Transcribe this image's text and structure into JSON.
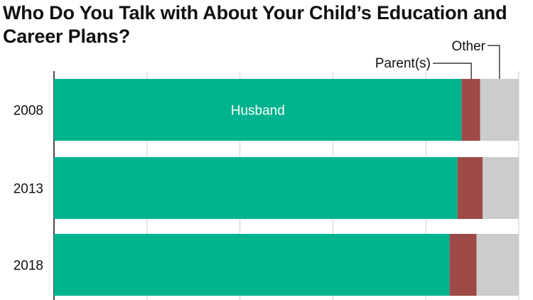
{
  "chart_data": {
    "type": "bar",
    "orientation": "horizontal",
    "stacked": true,
    "normalized": true,
    "title": "Who Do You Talk with About Your Child’s Education and Career Plans?",
    "xlabel": "",
    "ylabel": "",
    "xlim": [
      0,
      100
    ],
    "grid": true,
    "categories": [
      "2008",
      "2013",
      "2018"
    ],
    "series": [
      {
        "name": "Husband",
        "color": "#00b38f",
        "values": [
          87.7,
          86.8,
          85.1
        ]
      },
      {
        "name": "Parent(s)",
        "color": "#9e4a48",
        "values": [
          4.0,
          5.4,
          5.8
        ]
      },
      {
        "name": "Other",
        "color": "#cccccc",
        "values": [
          8.3,
          7.8,
          9.1
        ]
      }
    ]
  }
}
